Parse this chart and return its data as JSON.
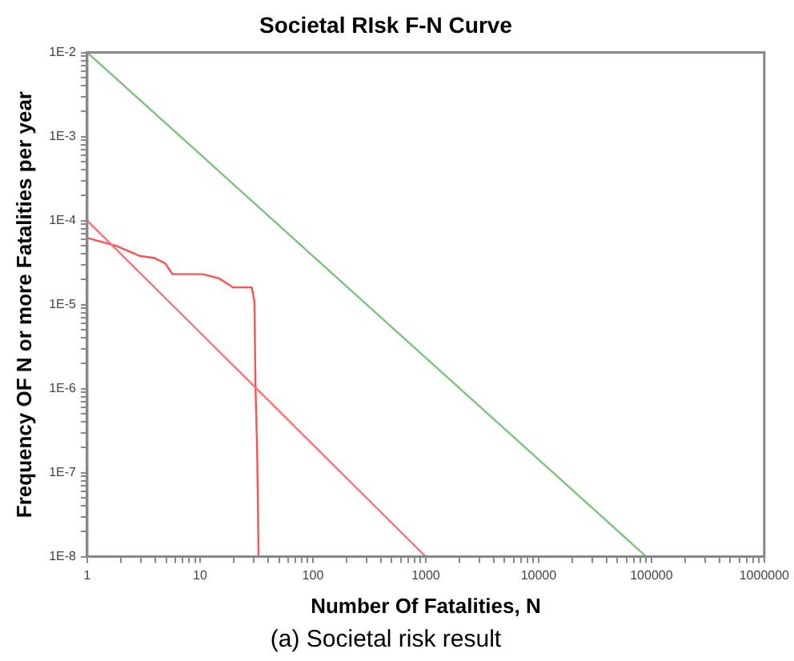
{
  "chart_data": {
    "type": "line",
    "title": "Societal RIsk F-N Curve",
    "xlabel": "Number Of Fatalities, N",
    "ylabel": "Frequency OF N or more Fatalities per year",
    "annotations": [
      "(a) Societal risk result"
    ],
    "log": "xy",
    "grid": false,
    "xlim": [
      1,
      1000000
    ],
    "ylim": [
      1e-08,
      0.01
    ],
    "xticks": [
      1,
      {
        "value": 2,
        "label": null
      },
      {
        "value": 3,
        "label": null
      },
      {
        "value": 4,
        "label": null
      },
      {
        "value": 5,
        "label": null
      },
      {
        "value": 6,
        "label": null
      },
      {
        "value": 7,
        "label": null
      },
      {
        "value": 8,
        "label": null
      },
      {
        "value": 9,
        "label": null
      },
      10,
      {
        "value": 20,
        "label": null
      },
      {
        "value": 30,
        "label": null
      },
      {
        "value": 40,
        "label": null
      },
      {
        "value": 50,
        "label": null
      },
      {
        "value": 60,
        "label": null
      },
      {
        "value": 70,
        "label": null
      },
      {
        "value": 80,
        "label": null
      },
      {
        "value": 90,
        "label": null
      },
      100,
      {
        "value": 200,
        "label": null
      },
      {
        "value": 300,
        "label": null
      },
      {
        "value": 400,
        "label": null
      },
      {
        "value": 500,
        "label": null
      },
      {
        "value": 600,
        "label": null
      },
      {
        "value": 700,
        "label": null
      },
      {
        "value": 800,
        "label": null
      },
      {
        "value": 900,
        "label": null
      },
      1000,
      {
        "value": 2000,
        "label": null
      },
      {
        "value": 3000,
        "label": null
      },
      {
        "value": 4000,
        "label": null
      },
      {
        "value": 5000,
        "label": null
      },
      {
        "value": 6000,
        "label": null
      },
      {
        "value": 7000,
        "label": null
      },
      {
        "value": 8000,
        "label": null
      },
      {
        "value": 9000,
        "label": null
      },
      10000,
      {
        "value": 20000,
        "label": null
      },
      {
        "value": 30000,
        "label": null
      },
      {
        "value": 40000,
        "label": null
      },
      {
        "value": 50000,
        "label": null
      },
      {
        "value": 60000,
        "label": null
      },
      {
        "value": 70000,
        "label": null
      },
      {
        "value": 80000,
        "label": null
      },
      {
        "value": 90000,
        "label": null
      },
      100000,
      {
        "value": 200000,
        "label": null
      },
      {
        "value": 300000,
        "label": null
      },
      {
        "value": 400000,
        "label": null
      },
      {
        "value": 500000,
        "label": null
      },
      {
        "value": 600000,
        "label": null
      },
      {
        "value": 700000,
        "label": null
      },
      {
        "value": 800000,
        "label": null
      },
      {
        "value": 900000,
        "label": null
      },
      1000000
    ],
    "yticks": [
      {
        "value": 1e-08,
        "label": "1E-8"
      },
      {
        "value": 2e-08,
        "label": null
      },
      {
        "value": 3e-08,
        "label": null
      },
      {
        "value": 4e-08,
        "label": null
      },
      {
        "value": 5e-08,
        "label": null
      },
      {
        "value": 6e-08,
        "label": null
      },
      {
        "value": 7e-08,
        "label": null
      },
      {
        "value": 8e-08,
        "label": null
      },
      {
        "value": 9e-08,
        "label": null
      },
      {
        "value": 1e-07,
        "label": "1E-7"
      },
      {
        "value": 2e-07,
        "label": null
      },
      {
        "value": 3e-07,
        "label": null
      },
      {
        "value": 4e-07,
        "label": null
      },
      {
        "value": 5e-07,
        "label": null
      },
      {
        "value": 6e-07,
        "label": null
      },
      {
        "value": 7e-07,
        "label": null
      },
      {
        "value": 8e-07,
        "label": null
      },
      {
        "value": 9e-07,
        "label": null
      },
      {
        "value": 1e-06,
        "label": "1E-6"
      },
      {
        "value": 2e-06,
        "label": null
      },
      {
        "value": 3e-06,
        "label": null
      },
      {
        "value": 4e-06,
        "label": null
      },
      {
        "value": 5e-06,
        "label": null
      },
      {
        "value": 6e-06,
        "label": null
      },
      {
        "value": 7e-06,
        "label": null
      },
      {
        "value": 8e-06,
        "label": null
      },
      {
        "value": 9e-06,
        "label": null
      },
      {
        "value": 1e-05,
        "label": "1E-5"
      },
      {
        "value": 2e-05,
        "label": null
      },
      {
        "value": 3e-05,
        "label": null
      },
      {
        "value": 4e-05,
        "label": null
      },
      {
        "value": 5e-05,
        "label": null
      },
      {
        "value": 6e-05,
        "label": null
      },
      {
        "value": 7e-05,
        "label": null
      },
      {
        "value": 8e-05,
        "label": null
      },
      {
        "value": 9e-05,
        "label": null
      },
      {
        "value": 0.0001,
        "label": "1E-4"
      },
      {
        "value": 0.0002,
        "label": null
      },
      {
        "value": 0.0003,
        "label": null
      },
      {
        "value": 0.0004,
        "label": null
      },
      {
        "value": 0.0005,
        "label": null
      },
      {
        "value": 0.0006,
        "label": null
      },
      {
        "value": 0.0007,
        "label": null
      },
      {
        "value": 0.0008,
        "label": null
      },
      {
        "value": 0.0009,
        "label": null
      },
      {
        "value": 0.001,
        "label": "1E-3"
      },
      {
        "value": 0.002,
        "label": null
      },
      {
        "value": 0.003,
        "label": null
      },
      {
        "value": 0.004,
        "label": null
      },
      {
        "value": 0.005,
        "label": null
      },
      {
        "value": 0.006,
        "label": null
      },
      {
        "value": 0.007,
        "label": null
      },
      {
        "value": 0.008,
        "label": null
      },
      {
        "value": 0.009,
        "label": null
      },
      {
        "value": 0.01,
        "label": "1E-2"
      }
    ],
    "series": [
      {
        "color": "#7cc47c",
        "x": [
          1,
          90000
        ],
        "values": [
          0.01,
          1e-08
        ]
      },
      {
        "color": "#ff7070",
        "x": [
          1,
          1000
        ],
        "values": [
          0.0001,
          1e-08
        ]
      },
      {
        "color": "#ff5050",
        "x": [
          1,
          1.8,
          2.9,
          3.9,
          4.9,
          5.7,
          10.6,
          14.7,
          18.4,
          19.5,
          28.7,
          30.3,
          31,
          32,
          33
        ],
        "values": [
          6.2e-05,
          5e-05,
          3.8e-05,
          3.6e-05,
          3.1e-05,
          2.3e-05,
          2.3e-05,
          2.05e-05,
          1.7e-05,
          1.6e-05,
          1.6e-05,
          1.1e-05,
          1e-06,
          2e-07,
          1e-08
        ]
      }
    ]
  }
}
